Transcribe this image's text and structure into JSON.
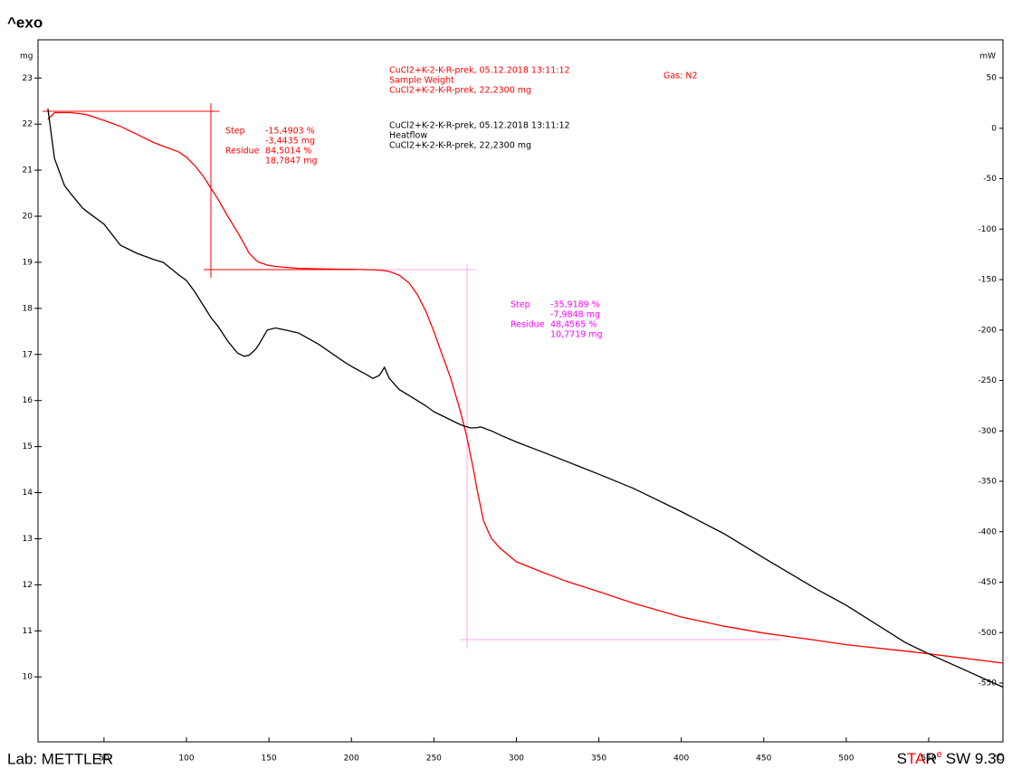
{
  "chart_data": {
    "type": "line",
    "top_label": "^exo",
    "ylabel": "mg",
    "y2label": "mW",
    "xlabel": "°C",
    "gas": "Gas: N2",
    "footer": {
      "left": "Lab: METTLER",
      "brand": [
        "S",
        "TA",
        "R"
      ],
      "sup": "e",
      "version": "SW 9.30"
    },
    "x": [
      16,
      20,
      26,
      30,
      37,
      40,
      50,
      60,
      70,
      80,
      86,
      95,
      100,
      105,
      110,
      115,
      119,
      125,
      131,
      135,
      138,
      142,
      144,
      149,
      154,
      160,
      168,
      180,
      196,
      200,
      210,
      213,
      217,
      220,
      223,
      229,
      235,
      240,
      245,
      250,
      255,
      260,
      265,
      268,
      270,
      272,
      274,
      276,
      278,
      280,
      283,
      285,
      290,
      300,
      316,
      330,
      350,
      371,
      400,
      426,
      450,
      481,
      500,
      536,
      550,
      595
    ],
    "series": [
      {
        "name": "Sample Weight",
        "color": "#ff0000",
        "header": "CuCl2+K-2-K-R-prek, 05.12.2018 13:11:12",
        "sample": "CuCl2+K-2-K-R-prek, 22,2300 mg",
        "values": [
          22.1,
          22.25,
          22.25,
          22.25,
          22.22,
          22.2,
          22.08,
          21.95,
          21.78,
          21.6,
          21.52,
          21.4,
          21.28,
          21.1,
          20.88,
          20.6,
          20.38,
          20.0,
          19.65,
          19.4,
          19.2,
          19.05,
          19.0,
          18.94,
          18.91,
          18.89,
          18.87,
          18.86,
          18.85,
          18.85,
          18.84,
          18.84,
          18.83,
          18.82,
          18.8,
          18.72,
          18.55,
          18.3,
          17.95,
          17.5,
          17.0,
          16.5,
          15.9,
          15.5,
          15.2,
          14.85,
          14.5,
          14.1,
          13.75,
          13.4,
          13.15,
          13.0,
          12.8,
          12.5,
          12.27,
          12.08,
          11.85,
          11.6,
          11.3,
          11.1,
          10.95,
          10.8,
          10.7,
          10.56,
          10.5,
          10.3
        ]
      },
      {
        "name": "Heatflow",
        "color": "#000000",
        "axis": "y2",
        "header": "CuCl2+K-2-K-R-prek, 05.12.2018 13:11:12",
        "sample": "CuCl2+K-2-K-R-prek, 22,2300 mg",
        "values": [
          19.5,
          -30,
          -56.7,
          -65,
          -79,
          -83,
          -95,
          -116,
          -124,
          -130,
          -133,
          -145,
          -151,
          -162,
          -175,
          -188,
          -196,
          -211,
          -223,
          -226,
          -225,
          -219,
          -214,
          -200,
          -198,
          -200,
          -203,
          -214,
          -232,
          -236,
          -245,
          -248,
          -245,
          -237,
          -248,
          -259,
          -265,
          -270,
          -275,
          -281,
          -285,
          -289,
          -293,
          -295,
          -296,
          -297,
          -297,
          -297,
          -296,
          -297,
          -299,
          -300,
          -304,
          -311,
          -321,
          -330,
          -343,
          -357,
          -380,
          -402,
          -426,
          -456,
          -473,
          -510,
          -521,
          -554
        ]
      }
    ],
    "steps": [
      {
        "color": "#ff0000",
        "rows": [
          {
            "label": "Step",
            "values": [
              "-15,4903 %",
              "-3,4435 mg"
            ]
          },
          {
            "label": "Residue",
            "values": [
              "84,5014 %",
              "18,7847 mg"
            ]
          }
        ]
      },
      {
        "color": "#ff00ff",
        "rows": [
          {
            "label": "Step",
            "values": [
              "-35,9189 %",
              "-7,9848 mg"
            ]
          },
          {
            "label": "Residue",
            "values": [
              "48,4565 %",
              "10,7719 mg"
            ]
          }
        ]
      }
    ],
    "xlim": [
      10,
      595
    ],
    "xticks": [
      50,
      100,
      150,
      200,
      250,
      300,
      350,
      400,
      450,
      500,
      550
    ],
    "ylim": [
      8.59,
      23.83
    ],
    "yticks": [
      10,
      11,
      12,
      13,
      14,
      15,
      16,
      17,
      18,
      19,
      20,
      21,
      22,
      23
    ],
    "y2lim": [
      -608.3,
      87.7
    ],
    "y2ticks": [
      -550,
      -500,
      -450,
      -400,
      -350,
      -300,
      -250,
      -200,
      -150,
      -100,
      -50,
      0,
      50
    ]
  }
}
